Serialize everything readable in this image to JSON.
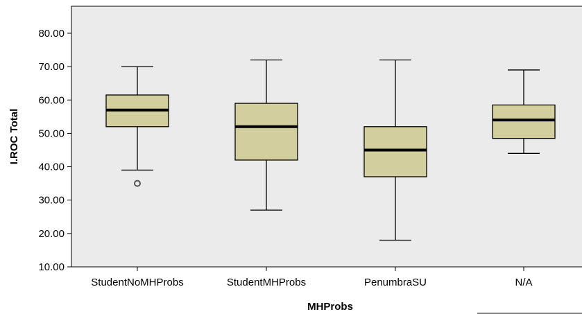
{
  "chart_data": {
    "type": "boxplot",
    "xlabel": "MHProbs",
    "ylabel": "I.ROC Total",
    "ylim": [
      10,
      85
    ],
    "yticks": [
      10,
      20,
      30,
      40,
      50,
      60,
      70,
      80
    ],
    "ytick_labels": [
      "10.00",
      "20.00",
      "30.00",
      "40.00",
      "50.00",
      "60.00",
      "70.00",
      "80.00"
    ],
    "categories": [
      "StudentNoMHProbs",
      "StudentMHProbs",
      "PenumbraSU",
      "N/A"
    ],
    "boxes": [
      {
        "min": 39,
        "q1": 52,
        "median": 57,
        "q3": 61.5,
        "max": 70,
        "outliers": [
          35
        ]
      },
      {
        "min": 27,
        "q1": 42,
        "median": 52,
        "q3": 59,
        "max": 72,
        "outliers": []
      },
      {
        "min": 18,
        "q1": 37,
        "median": 45,
        "q3": 52,
        "max": 72,
        "outliers": []
      },
      {
        "min": 44,
        "q1": 48.5,
        "median": 54,
        "q3": 58.5,
        "max": 69,
        "outliers": []
      }
    ],
    "grid": false,
    "colors": {
      "plot_background": "#ebebeb",
      "box_fill": "#d3ce9d",
      "box_stroke": "#000000",
      "median": "#000000",
      "outlier_stroke": "#555555"
    }
  }
}
